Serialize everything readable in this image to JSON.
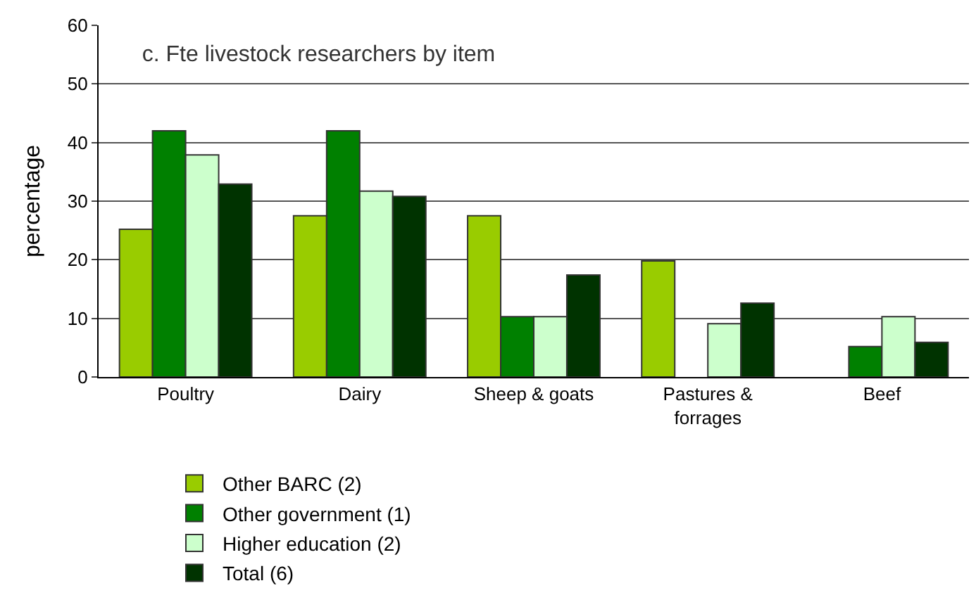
{
  "chart_data": {
    "type": "bar",
    "title": "c. Fte livestock researchers by item",
    "ylabel": "percentage",
    "categories": [
      "Poultry",
      "Dairy",
      "Sheep & goats",
      "Pastures &\nforrages",
      "Beef"
    ],
    "series": [
      {
        "name": "Other BARC (2)",
        "color": "#99cc00",
        "values": [
          25.2,
          27.5,
          27.5,
          19.8,
          null
        ]
      },
      {
        "name": "Other government (1)",
        "color": "#008000",
        "values": [
          42.0,
          42.0,
          10.3,
          null,
          5.2
        ]
      },
      {
        "name": "Higher education (2)",
        "color": "#ccffcc",
        "values": [
          37.9,
          31.7,
          10.3,
          9.1,
          10.3
        ]
      },
      {
        "name": "Total (6)",
        "color": "#003300",
        "values": [
          32.9,
          30.8,
          17.4,
          12.6,
          5.9
        ]
      }
    ],
    "ylim": [
      0,
      60
    ],
    "yticks": [
      0,
      10,
      20,
      30,
      40,
      50,
      60
    ],
    "grid": "y",
    "legend": "bottom"
  }
}
